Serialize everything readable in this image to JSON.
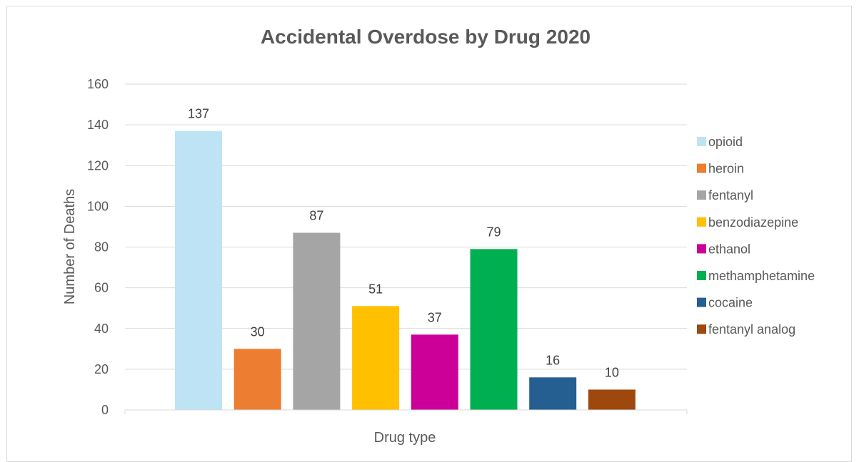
{
  "chart_data": {
    "type": "bar",
    "title": "Accidental Overdose by Drug 2020",
    "xlabel": "Drug type",
    "ylabel": "Number of Deaths",
    "ylim": [
      0,
      160
    ],
    "yticks": [
      0,
      20,
      40,
      60,
      80,
      100,
      120,
      140,
      160
    ],
    "grid": true,
    "legend_position": "right",
    "series": [
      {
        "name": "opioid",
        "value": 137,
        "color": "#BDE3F5"
      },
      {
        "name": "heroin",
        "value": 30,
        "color": "#ED7D31"
      },
      {
        "name": "fentanyl",
        "value": 87,
        "color": "#A5A5A5"
      },
      {
        "name": "benzodiazepine",
        "value": 51,
        "color": "#FFC000"
      },
      {
        "name": "ethanol",
        "value": 37,
        "color": "#CC0099"
      },
      {
        "name": "methamphetamine",
        "value": 79,
        "color": "#00B050"
      },
      {
        "name": "cocaine",
        "value": 16,
        "color": "#255E91"
      },
      {
        "name": "fentanyl analog",
        "value": 10,
        "color": "#9E480E"
      }
    ]
  }
}
